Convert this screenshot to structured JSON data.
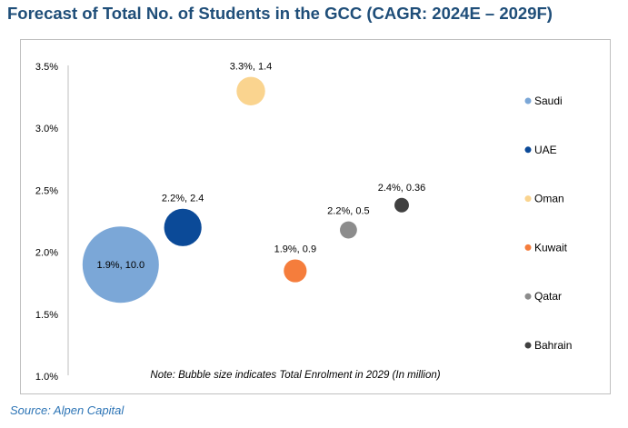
{
  "title": "Forecast of Total No. of Students in the GCC (CAGR: 2024E – 2029F)",
  "source": "Source: Alpen Capital",
  "chart_data": {
    "type": "bubble",
    "xlim": [
      0,
      10
    ],
    "ylim": [
      1.0,
      3.5
    ],
    "y_ticks": [
      "1.0%",
      "1.5%",
      "2.0%",
      "2.5%",
      "3.0%",
      "3.5%"
    ],
    "note": "Note: Bubble size indicates Total Enrolment in 2029 (In million)",
    "legend_position": "right",
    "series": [
      {
        "name": "Saudi",
        "x": 1.5,
        "y": 1.9,
        "size": 10.0,
        "label": "1.9%, 10.0",
        "color": "#7ba7d7"
      },
      {
        "name": "UAE",
        "x": 3.6,
        "y": 2.2,
        "size": 2.4,
        "label": "2.2%, 2.4",
        "color": "#0b4a98"
      },
      {
        "name": "Oman",
        "x": 5.9,
        "y": 3.3,
        "size": 1.4,
        "label": "3.3%, 1.4",
        "color": "#fad48f"
      },
      {
        "name": "Kuwait",
        "x": 7.4,
        "y": 1.85,
        "size": 0.9,
        "label": "1.9%, 0.9",
        "color": "#f57d3c"
      },
      {
        "name": "Qatar",
        "x": 9.2,
        "y": 2.18,
        "size": 0.5,
        "label": "2.2%, 0.5",
        "color": "#8c8c8c"
      },
      {
        "name": "Bahrain",
        "x": 11.0,
        "y": 2.38,
        "size": 0.36,
        "label": "2.4%, 0.36",
        "color": "#404040"
      }
    ]
  }
}
